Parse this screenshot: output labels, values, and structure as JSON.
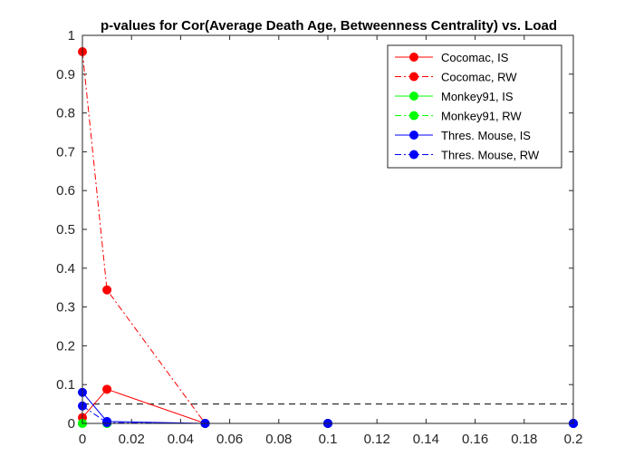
{
  "chart_data": {
    "type": "line",
    "title": "p-values for Cor(Average Death Age, Betweenness Centrality) vs. Load",
    "xlabel": "",
    "ylabel": "",
    "xlim": [
      0,
      0.2
    ],
    "ylim": [
      0,
      1
    ],
    "xticks": [
      "0",
      "0.02",
      "0.04",
      "0.06",
      "0.08",
      "0.1",
      "0.12",
      "0.14",
      "0.16",
      "0.18",
      "0.2"
    ],
    "yticks": [
      "0",
      "0.1",
      "0.2",
      "0.3",
      "0.4",
      "0.5",
      "0.6",
      "0.7",
      "0.8",
      "0.9",
      "1"
    ],
    "x": [
      0,
      0.01,
      0.05,
      0.1,
      0.2
    ],
    "grid": false,
    "legend_position": "top-right",
    "series": [
      {
        "name": "Cocomac, IS",
        "color": "#ff0000",
        "style": "solid",
        "values": [
          0.015,
          0.088,
          0.0,
          0.0,
          0.0
        ]
      },
      {
        "name": "Cocomac, RW",
        "color": "#ff0000",
        "style": "dashdot",
        "values": [
          0.958,
          0.344,
          0.0,
          0.0,
          0.0
        ]
      },
      {
        "name": "Monkey91, IS",
        "color": "#00ff00",
        "style": "solid",
        "values": [
          0.0,
          0.0,
          0.0,
          0.0,
          0.0
        ]
      },
      {
        "name": "Monkey91, RW",
        "color": "#00ff00",
        "style": "dashdot",
        "values": [
          0.0,
          0.0,
          0.0,
          0.0,
          0.0
        ]
      },
      {
        "name": "Thres. Mouse, IS",
        "color": "#0000ff",
        "style": "solid",
        "values": [
          0.08,
          0.005,
          0.0,
          0.0,
          0.0
        ]
      },
      {
        "name": "Thres. Mouse, RW",
        "color": "#0000ff",
        "style": "dashdot",
        "values": [
          0.045,
          0.002,
          0.0,
          0.0,
          0.0
        ]
      }
    ],
    "reference_line": {
      "y": 0.05,
      "color": "#000000",
      "style": "dashed"
    }
  }
}
